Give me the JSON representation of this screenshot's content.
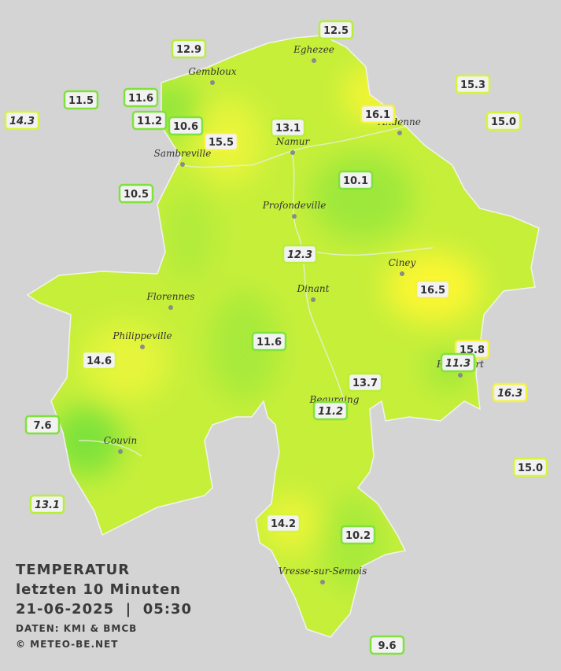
{
  "map": {
    "stations": [
      {
        "label": "12.5"
      },
      {
        "label": "12.9"
      },
      {
        "label": "15.3"
      },
      {
        "label": "11.5"
      },
      {
        "label": "11.6"
      },
      {
        "label": "14.3",
        "italic": true
      },
      {
        "label": "11.2"
      },
      {
        "label": "10.6"
      },
      {
        "label": "13.1"
      },
      {
        "label": "16.1"
      },
      {
        "label": "15.0"
      },
      {
        "label": "15.5"
      },
      {
        "label": "10.1"
      },
      {
        "label": "10.5"
      },
      {
        "label": "12.3",
        "italic": true
      },
      {
        "label": "16.5"
      },
      {
        "label": "11.6"
      },
      {
        "label": "15.8"
      },
      {
        "label": "11.3",
        "italic": true
      },
      {
        "label": "14.6"
      },
      {
        "label": "13.7"
      },
      {
        "label": "16.3",
        "italic": true
      },
      {
        "label": "11.2",
        "italic": true
      },
      {
        "label": "7.6"
      },
      {
        "label": "15.0"
      },
      {
        "label": "13.1",
        "italic": true
      },
      {
        "label": "14.2"
      },
      {
        "label": "10.2"
      },
      {
        "label": "9.6"
      }
    ],
    "towns": [
      "Eghezee",
      "Gembloux",
      "Andenne",
      "Namur",
      "Sambreville",
      "Profondeville",
      "Ciney",
      "Dinant",
      "Florennes",
      "Philippeville",
      "Rochefort",
      "Beauraing",
      "Couvin",
      "Vresse-sur-Semois"
    ],
    "legend": {
      "title": "TEMPERATUR",
      "period": "letzten 10 Minuten",
      "datetime": "21-06-2025  |  05:30",
      "source": "DATEN: KMI & BMCB",
      "copyright": "© METEO-BE.NET"
    }
  }
}
